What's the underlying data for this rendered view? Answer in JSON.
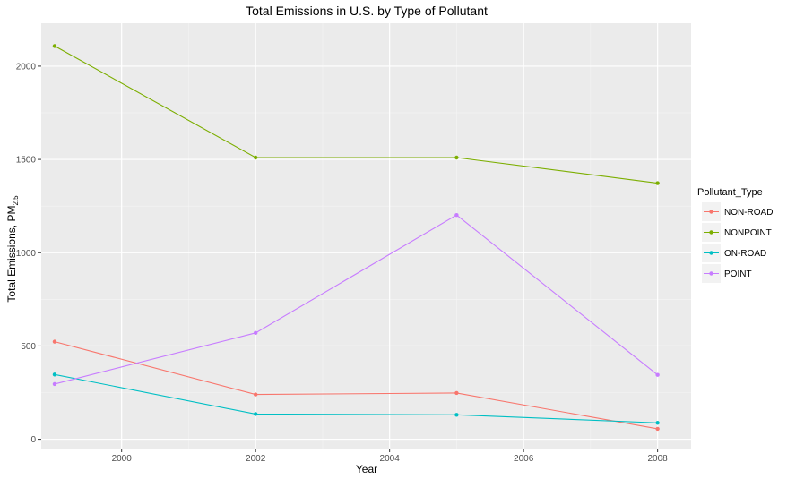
{
  "chart_data": {
    "type": "line",
    "title": "Total Emissions in U.S. by Type of Pollutant",
    "xlabel": "Year",
    "ylabel_main": "Total Emissions, PM",
    "ylabel_subscript": "2.5",
    "x": [
      1999,
      2002,
      2005,
      2008
    ],
    "xlim": [
      1998.8,
      2008.5
    ],
    "ylim": [
      -50,
      2230
    ],
    "x_ticks": [
      2000,
      2002,
      2004,
      2006,
      2008
    ],
    "y_ticks": [
      0,
      500,
      1000,
      1500,
      2000
    ],
    "grid": true,
    "legend_title": "Pollutant_Type",
    "legend_position": "right",
    "series": [
      {
        "name": "NON-ROAD",
        "color": "#F8766D",
        "values": [
          523,
          240,
          248,
          56
        ]
      },
      {
        "name": "NONPOINT",
        "color": "#7CAE00",
        "values": [
          2108,
          1510,
          1510,
          1373
        ]
      },
      {
        "name": "ON-ROAD",
        "color": "#00BFC4",
        "values": [
          347,
          135,
          131,
          88
        ]
      },
      {
        "name": "POINT",
        "color": "#C77CFF",
        "values": [
          296,
          570,
          1202,
          345
        ]
      }
    ]
  }
}
